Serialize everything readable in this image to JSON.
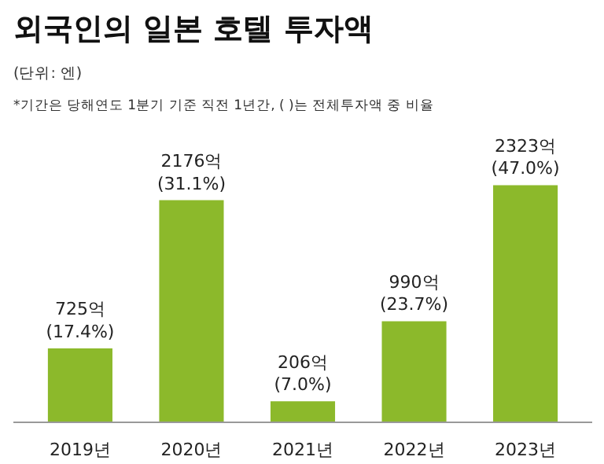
{
  "chart_data": {
    "type": "bar",
    "title": "외국인의 일본 호텔 투자액",
    "subtitle": "(단위: 엔)",
    "annotations": [
      "*기간은 당해연도 1분기 기준 직전 1년간, ( )는 전체투자액 중 비율"
    ],
    "categories": [
      "2019년",
      "2020년",
      "2021년",
      "2022년",
      "2023년"
    ],
    "values": [
      725,
      2176,
      206,
      990,
      2323
    ],
    "color": "#8cb92b",
    "value_labels": [
      "725억\n(17.4%)",
      "2176억\n(31.1%)",
      "206억\n(7.0%)",
      "990억\n(23.7%)",
      "2323억\n(47.0%)"
    ],
    "grid": false
  }
}
